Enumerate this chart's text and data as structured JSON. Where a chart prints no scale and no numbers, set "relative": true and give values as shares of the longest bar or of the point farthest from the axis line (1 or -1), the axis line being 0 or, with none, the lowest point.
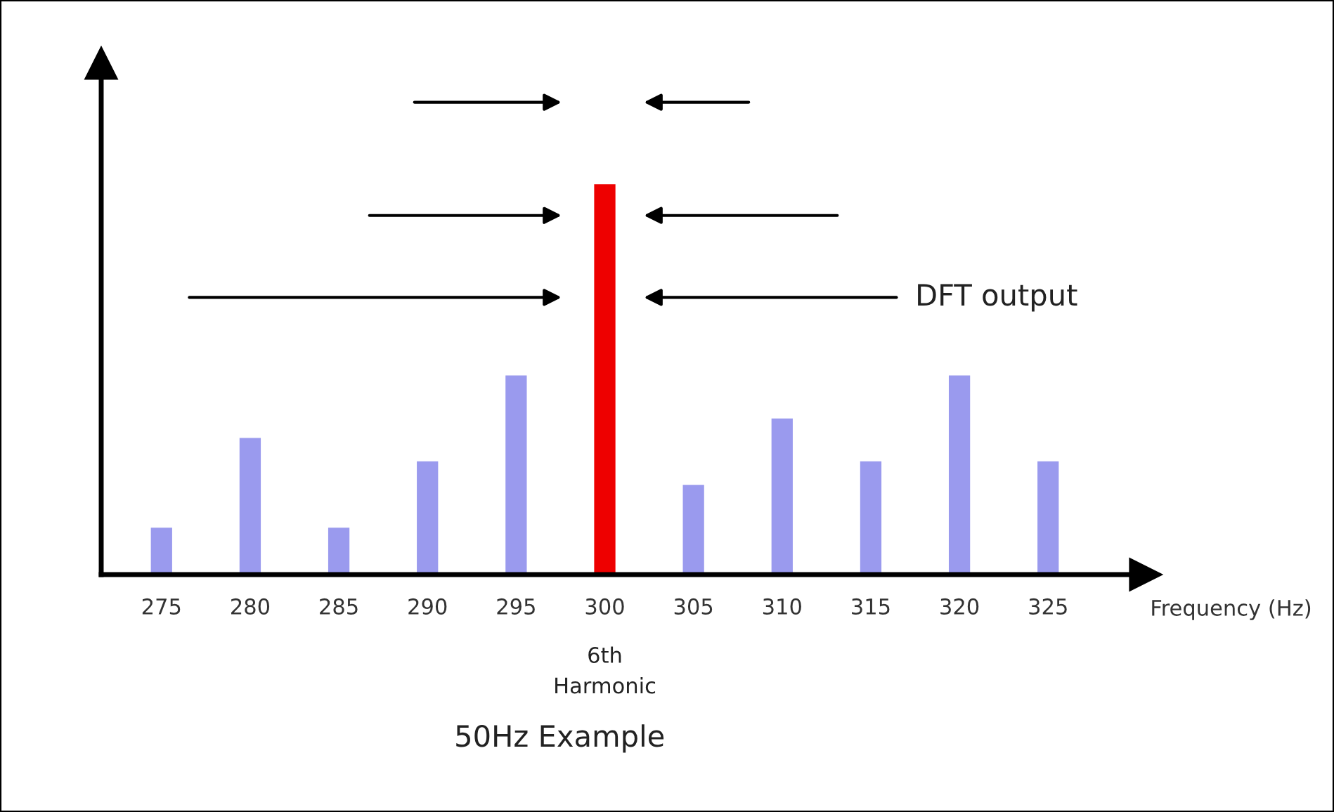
{
  "chart_data": {
    "type": "bar",
    "relative": true,
    "xlabel": "Frequency (Hz)",
    "categories": [
      "275",
      "280",
      "285",
      "290",
      "295",
      "300",
      "305",
      "310",
      "315",
      "320",
      "325"
    ],
    "values": [
      0.12,
      0.35,
      0.12,
      0.29,
      0.51,
      1,
      0.23,
      0.4,
      0.29,
      0.51,
      0.29
    ],
    "colors": [
      "#9a9aee",
      "#9a9aee",
      "#9a9aee",
      "#9a9aee",
      "#9a9aee",
      "#ee0000",
      "#9a9aee",
      "#9a9aee",
      "#9a9aee",
      "#9a9aee",
      "#9a9aee"
    ],
    "annotations": [
      "6th\nHarmonic",
      "50Hz Example",
      "DFT output"
    ],
    "grid": false
  }
}
